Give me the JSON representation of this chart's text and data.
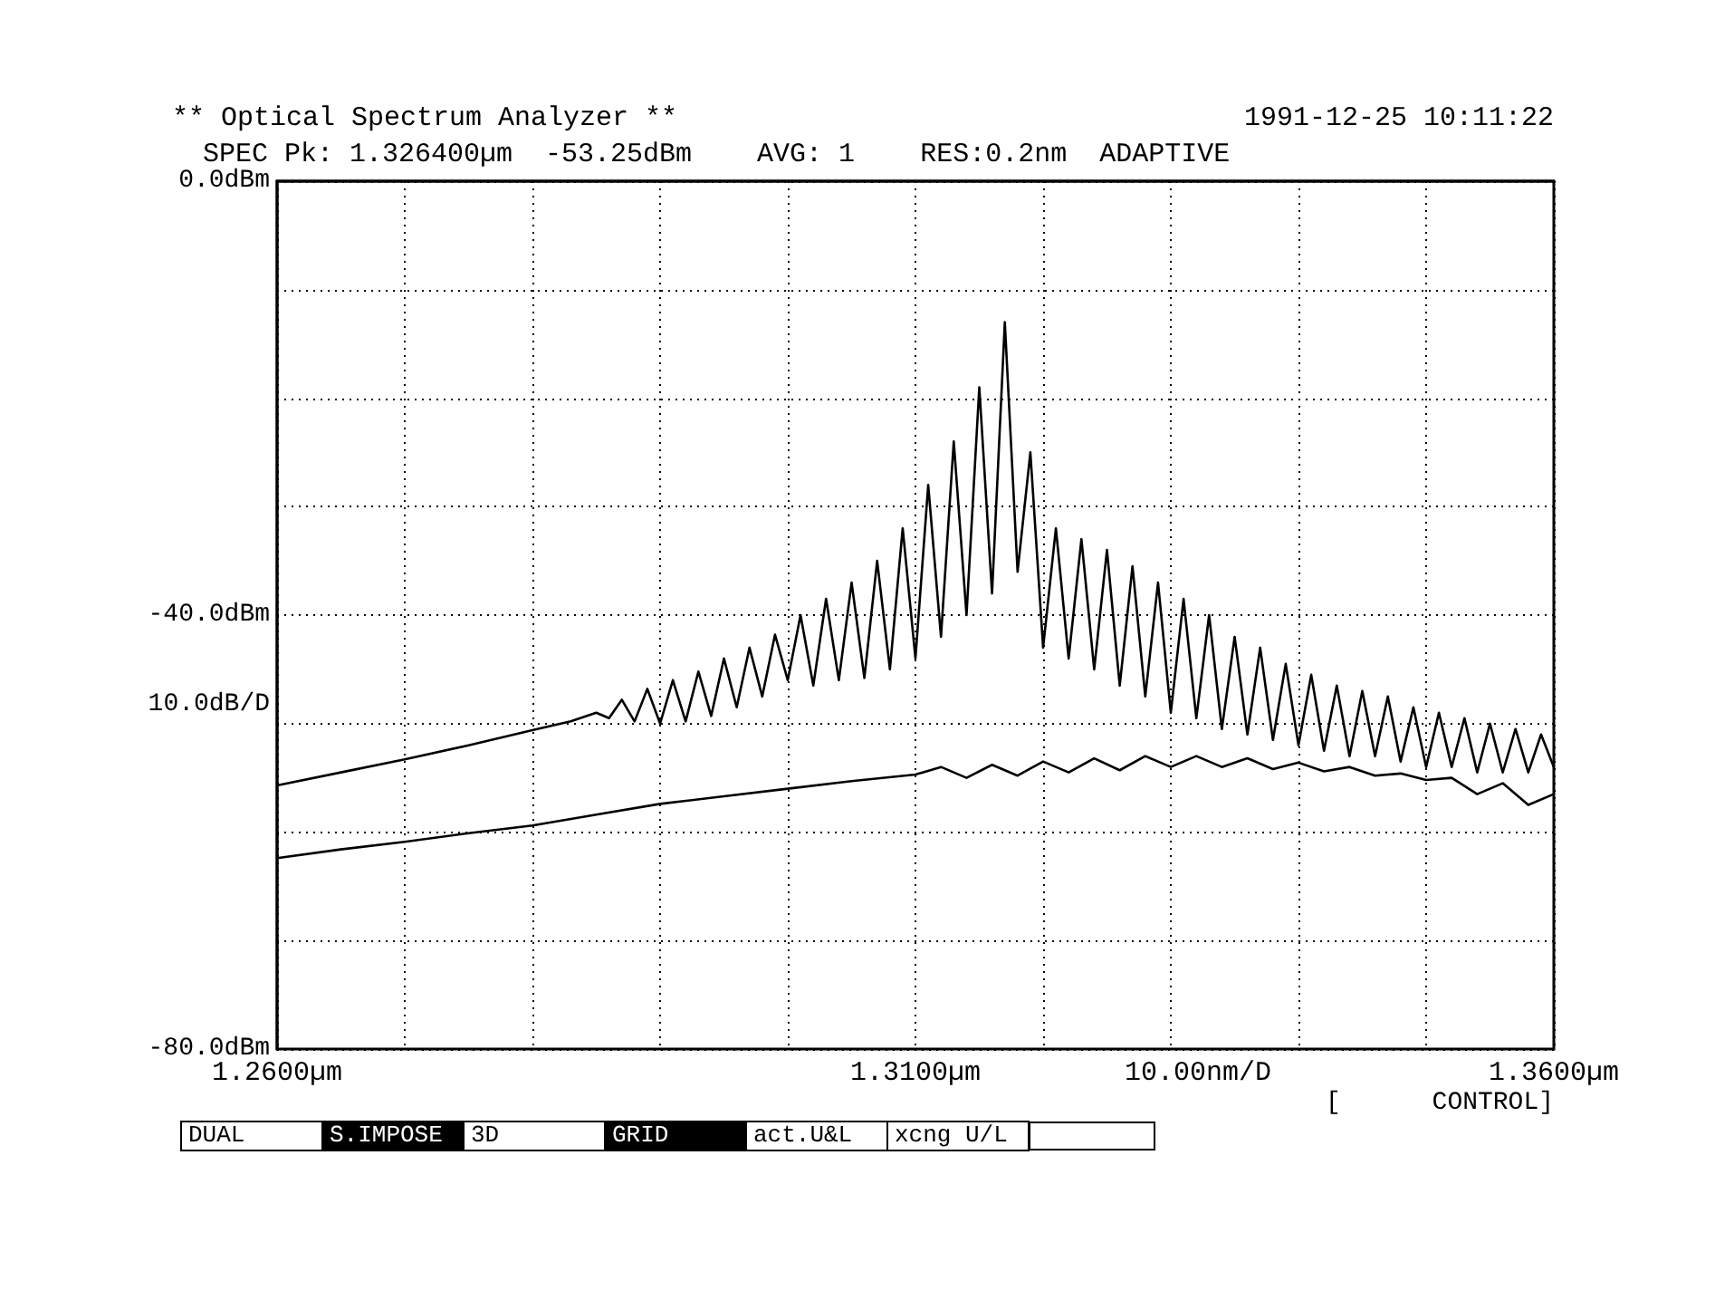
{
  "chart_data": {
    "type": "line",
    "title": "** Optical Spectrum Analyzer **",
    "subtitle": "1991-12-25 10:11:22",
    "annotations": [
      "SPEC Pk: 1.326400µm  -53.25dBm    AVG: 1    RES:0.2nm  ADAPTIVE",
      "[      CONTROL]",
      "DUAL",
      "S.IMPOSE",
      "3D",
      "GRID",
      "act.U&L",
      "xcng U/L"
    ],
    "xlim": [
      1.26,
      1.36
    ],
    "xticks": [
      {
        "value": 1.26,
        "label": "1.2600µm"
      },
      {
        "value": 1.27,
        "label": null
      },
      {
        "value": 1.28,
        "label": null
      },
      {
        "value": 1.29,
        "label": null
      },
      {
        "value": 1.3,
        "label": null
      },
      {
        "value": 1.31,
        "label": "1.3100µm"
      },
      {
        "value": 1.32,
        "label": null
      },
      {
        "value": 1.33,
        "label": null
      },
      {
        "value": 1.34,
        "label": null
      },
      {
        "value": 1.35,
        "label": null
      },
      {
        "value": 1.36,
        "label": "1.3600µm"
      }
    ],
    "ylim": [
      -80,
      0
    ],
    "yticks": [
      {
        "value": -80,
        "label": "-80.0dBm"
      },
      {
        "value": -70,
        "label": null
      },
      {
        "value": -60,
        "label": null
      },
      {
        "value": -50,
        "label": null
      },
      {
        "value": -40,
        "label": "-40.0dBm"
      },
      {
        "value": -30,
        "label": null
      },
      {
        "value": -20,
        "label": null
      },
      {
        "value": -10,
        "label": null
      },
      {
        "value": 0,
        "label": "0.0dBm"
      }
    ],
    "xlabel": "10.00nm/D",
    "ylabel": "10.0dB/D",
    "grid": true,
    "marker": "none",
    "line_style": "solid",
    "series": [
      {
        "color": "#000000",
        "x": [
          1.26,
          1.265,
          1.27,
          1.275,
          1.28,
          1.283,
          1.285,
          1.286,
          1.287,
          1.288,
          1.289,
          1.29,
          1.291,
          1.292,
          1.293,
          1.294,
          1.295,
          1.296,
          1.297,
          1.298,
          1.299,
          1.3,
          1.301,
          1.302,
          1.303,
          1.304,
          1.305,
          1.306,
          1.307,
          1.308,
          1.309,
          1.31,
          1.311,
          1.312,
          1.313,
          1.314,
          1.315,
          1.316,
          1.317,
          1.318,
          1.319,
          1.32,
          1.321,
          1.322,
          1.323,
          1.324,
          1.325,
          1.326,
          1.327,
          1.328,
          1.329,
          1.33,
          1.331,
          1.332,
          1.333,
          1.334,
          1.335,
          1.336,
          1.337,
          1.338,
          1.339,
          1.34,
          1.341,
          1.342,
          1.343,
          1.344,
          1.345,
          1.346,
          1.347,
          1.348,
          1.349,
          1.35,
          1.351,
          1.352,
          1.353,
          1.354,
          1.355,
          1.356,
          1.357,
          1.358,
          1.359,
          1.36
        ],
        "values": [
          -55.7,
          -54.5,
          -53.3,
          -52,
          -50.6,
          -49.8,
          -49,
          -49.5,
          -47.8,
          -49.8,
          -46.8,
          -50,
          -46,
          -49.8,
          -45.2,
          -49.3,
          -44,
          -48.5,
          -43,
          -47.5,
          -41.8,
          -46,
          -40,
          -46.5,
          -38.5,
          -46,
          -37,
          -45.8,
          -35,
          -45,
          -32,
          -44,
          -28,
          -42,
          -24,
          -40,
          -19,
          -38,
          -13,
          -36,
          -25,
          -43,
          -32,
          -44,
          -33,
          -45,
          -34,
          -46.5,
          -35.5,
          -47.5,
          -37,
          -49,
          -38.5,
          -49.5,
          -40,
          -50.5,
          -42,
          -51,
          -43,
          -51.5,
          -44.5,
          -52,
          -45.5,
          -52.5,
          -46.5,
          -53,
          -47,
          -53,
          -47.5,
          -53.5,
          -48.5,
          -54,
          -49,
          -54,
          -49.5,
          -54.5,
          -50,
          -54.5,
          -50.5,
          -54.5,
          -51,
          -54
        ]
      },
      {
        "color": "#000000",
        "x": [
          1.26,
          1.265,
          1.27,
          1.275,
          1.28,
          1.285,
          1.29,
          1.295,
          1.3,
          1.305,
          1.31,
          1.312,
          1.314,
          1.316,
          1.318,
          1.32,
          1.322,
          1.324,
          1.326,
          1.328,
          1.33,
          1.332,
          1.334,
          1.336,
          1.338,
          1.34,
          1.342,
          1.344,
          1.346,
          1.348,
          1.35,
          1.352,
          1.354,
          1.356,
          1.358,
          1.36
        ],
        "values": [
          -62.4,
          -61.6,
          -60.9,
          -60.1,
          -59.4,
          -58.4,
          -57.4,
          -56.7,
          -56,
          -55.3,
          -54.7,
          -54,
          -55,
          -53.8,
          -54.8,
          -53.5,
          -54.5,
          -53.2,
          -54.3,
          -53,
          -54,
          -53,
          -54,
          -53.2,
          -54.2,
          -53.6,
          -54.4,
          -54,
          -54.8,
          -54.6,
          -55.2,
          -55,
          -56.5,
          -55.5,
          -57.5,
          -56.5
        ]
      }
    ]
  }
}
